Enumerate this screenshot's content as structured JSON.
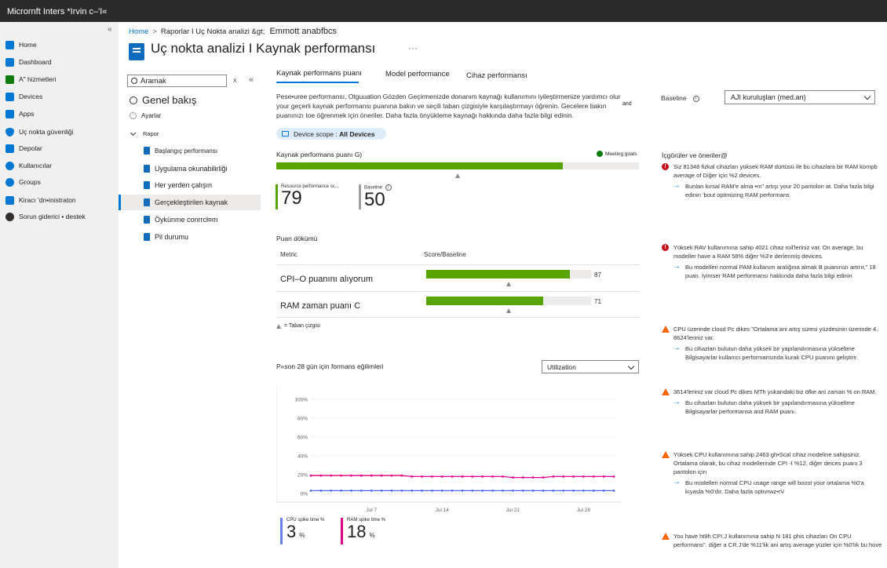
{
  "app": {
    "title": "Micrornft Inters *Irvin c–'I«"
  },
  "nav": {
    "collapse": "«",
    "items": [
      {
        "label": "Home",
        "icon": "home-icon",
        "color": "#0078d4"
      },
      {
        "label": "Dashboard",
        "icon": "dashboard-icon",
        "color": "#0078d4"
      },
      {
        "label": "A\" hizmetleri",
        "icon": "services-icon",
        "color": "#107c10"
      },
      {
        "label": "Devices",
        "icon": "devices-icon",
        "color": "#0078d4"
      },
      {
        "label": "Apps",
        "icon": "apps-icon",
        "color": "#0078d4"
      },
      {
        "label": "Uç nokta güvenliği",
        "icon": "shield-icon",
        "color": "#0078d4"
      },
      {
        "label": "Depolar",
        "icon": "reports-icon",
        "color": "#0078d4"
      },
      {
        "label": "Kullanıcılar",
        "icon": "users-icon",
        "color": "#0078d4"
      },
      {
        "label": "Groups",
        "icon": "groups-icon",
        "color": "#0078d4"
      },
      {
        "label": "Kiracı 'dn•inistraton",
        "icon": "tenant-admin-icon",
        "color": "#0078d4"
      },
      {
        "label": "Sorun giderici • destek",
        "icon": "troubleshoot-icon",
        "color": "#323130"
      }
    ]
  },
  "breadcrumb": {
    "home": "Home",
    "sep": ">",
    "path": "Raporlar I Uç Nokta analizi &gt;",
    "current": "Emmott anabfbcs"
  },
  "page": {
    "title": "Uç nokta analizi I Kaynak performansı",
    "more": "···"
  },
  "search": {
    "placeholder": "Aramak",
    "clear": "x",
    "collapse": "«"
  },
  "subnav": {
    "overview": "Genel bakış",
    "settings": "Ayarlar",
    "reports_group": "Rapor",
    "reports": [
      "Başlangıç performansı",
      "Uygulama okunabilirliği",
      "Her yerden çalışın",
      "Gerçekleştirilen kaynak",
      "Öykünme conrrcł¤m",
      "Pil durumu"
    ]
  },
  "tabs": [
    "Kaynak performans puanı",
    "Model performance",
    "Cihaz performansı"
  ],
  "intro": {
    "line1": "Pese•uree performansı, Otguuation Gözden Geçirmenizde donanım kaynağı kullanımını iyileştirmenize yardımcı olur",
    "line2": "your geçerli kaynak performansı puanına bakın ve seçili taban çizgisiyle karşılaştırmayı öğrenin. Gecelere bakın",
    "line3": "puanınızı toe öğrenmek için öneriler. Daha fazla önyükleme kaynağı hakkında daha fazla bilgi edinin.",
    "and": "and"
  },
  "scope": {
    "label": "Device scope :",
    "value": "All Devices"
  },
  "baseline": {
    "label": "Baseline",
    "info": "i",
    "value": "AJI kuruluşları (med.an)"
  },
  "score": {
    "title": "Kaynak performans puanı G)",
    "status": "Meeting goals",
    "value": 79,
    "baseline": 50,
    "max": 100,
    "kpi_label": "Resource performance sc...",
    "kpi_value": "79",
    "baseline_label": "Baseline",
    "baseline_value": "50"
  },
  "breakdown": {
    "title": "Puan dökümü",
    "col_metric": "Metric",
    "col_score": "Score/Baseline",
    "rows": [
      {
        "name": "CPI–O puanını alıyorum",
        "value": 87,
        "value_text": "87",
        "baseline": 50
      },
      {
        "name": "RAM zaman puanı C",
        "value": 71,
        "value_text": "71",
        "baseline": 50
      }
    ],
    "legend": "= Taban çizgisi"
  },
  "trend": {
    "title": "P«son 28 gün için formans eğilimleri",
    "select": "Utilization",
    "cpu_label": "CPU spike time %",
    "cpu_value": "3",
    "cpu_unit": "%",
    "ram_label": "RAM spike time %",
    "ram_value": "18",
    "ram_unit": "%"
  },
  "chart_data": {
    "type": "line",
    "title": "P«son 28 gün için formans eğilimleri",
    "ylim": [
      0,
      100
    ],
    "yticks": [
      "0%",
      "20%",
      "40%",
      "60%",
      "80%",
      "100%"
    ],
    "xticks": [
      "Jul 7",
      "Jul 14",
      "Jul 21",
      "Jul 28"
    ],
    "x": [
      "Jul 1",
      "Jul 2",
      "Jul 3",
      "Jul 4",
      "Jul 5",
      "Jul 6",
      "Jul 7",
      "Jul 8",
      "Jul 9",
      "Jul 10",
      "Jul 11",
      "Jul 12",
      "Jul 13",
      "Jul 14",
      "Jul 15",
      "Jul 16",
      "Jul 17",
      "Jul 18",
      "Jul 19",
      "Jul 20",
      "Jul 21",
      "Jul 22",
      "Jul 23",
      "Jul 24",
      "Jul 25",
      "Jul 26",
      "Jul 27",
      "Jul 28",
      "Jul 29",
      "Jul 30",
      "Jul 31"
    ],
    "series": [
      {
        "name": "RAM spike time %",
        "color": "#e3008c",
        "values": [
          19,
          19,
          19,
          19,
          19,
          19,
          19,
          19,
          19,
          19,
          18,
          18,
          18,
          18,
          18,
          18,
          18,
          18,
          18,
          18,
          17,
          17,
          17,
          17,
          18,
          18,
          18,
          18,
          18,
          18,
          18
        ]
      },
      {
        "name": "CPU spike time %",
        "color": "#4f6bed",
        "values": [
          3,
          3,
          3,
          3,
          3,
          3,
          3,
          3,
          3,
          3,
          3,
          3,
          3,
          3,
          3,
          3,
          3,
          3,
          3,
          3,
          3,
          3,
          3,
          3,
          3,
          3,
          3,
          3,
          3,
          3,
          3
        ]
      }
    ]
  },
  "insights": {
    "title": "İçgörüler ve öneriler@",
    "items": [
      {
        "sev": "error",
        "text": "Siz 81348 fizkal cihazları yüksek RAM dürtüsü ile bu cihazlara bir RAM kompb average of Diğer için %2 devices.",
        "action": "Bunları kırsal RAM'e alma •m\" artışı your 20 pantolon at. Daha fazla bilgi edinin 'bout optimizing RAM performans"
      },
      {
        "sev": "error",
        "text": "Yüksek RAV kullanımına sahip 4021 cihaz roil'leriniz var. On average, bu modeller have a RAM 58% diğer %3'e derlenmiş devices.",
        "action": "Bu modelleri normal PAM kullanım aralığına almak B puanınızı artırır,\" 18 puan. İyimser RAM performansı hakkında daha fazla bilgi edinin"
      },
      {
        "sev": "warn",
        "text": "CPU üzerinde cloud Pc dikes \"Ortalama ani artış süresi yüzdesinin üzerinde 4. 8624'leriniz var.",
        "action": "Bu cihazları bulutun daha yüksek bir yapılandırmasına yükseltme Bilgisayarlar kullanıcı performansında kurak CPU puanını geliştirir."
      },
      {
        "sev": "warn",
        "text": "3614'leriniz var cloud Pc dikes MTh yukarıdaki biz öfke ani zaman % on RAM.",
        "action": "Bu cihazları bulutun daha yüksek bir yapılandırmasına yükseltme Bilgisayarlar performansa and RAM puanı."
      },
      {
        "sev": "warn",
        "text": "Yüksek CPU kullanımına sahip 2463 gh•Scal cihaz modeline sahipsiniz. Ortalama olarak, bu cihaz modellerinde CPI -I %12, diğer deices puanı 3 pantolon için",
        "action": "Bu modelleri normal CPU usage range will boost your ortalama %0'a kıyasla %0'dır. Daha fazla optıvrwz•rV"
      },
      {
        "sev": "warn",
        "text": "You have ht9h CPI.J kullanımına sahip N 181 phis cihazları On CPU performans\". diğer a CR.J'de %11'lik ani artış average yüzler için %0'lık bu hove",
        "action": ""
      }
    ]
  }
}
